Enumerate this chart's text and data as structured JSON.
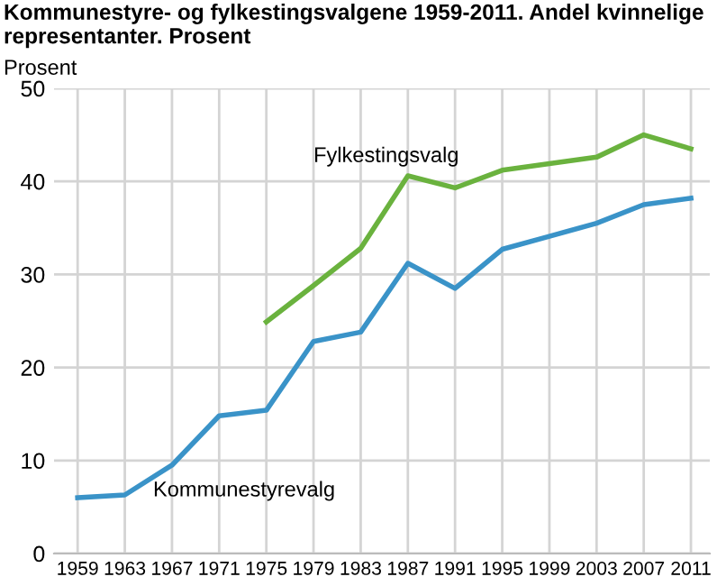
{
  "chart_data": {
    "type": "line",
    "title": "Kommunestyre- og fylkestingsvalgene 1959-2011. Andel kvinnelige representanter. Prosent",
    "ylabel": "Prosent",
    "categories": [
      "1959",
      "1963",
      "1967",
      "1971",
      "1975",
      "1979",
      "1983",
      "1987",
      "1991",
      "1995",
      "1999",
      "2003",
      "2007",
      "2011"
    ],
    "series": [
      {
        "name": "Kommunestyrevalg",
        "color": "#3a93c8",
        "values": [
          6.0,
          6.3,
          9.5,
          14.8,
          15.4,
          22.8,
          23.8,
          31.2,
          28.5,
          32.7,
          34.1,
          35.5,
          37.5,
          38.2
        ]
      },
      {
        "name": "Fylkestingsvalg",
        "color": "#6ab23e",
        "values": [
          null,
          null,
          null,
          null,
          24.9,
          28.8,
          32.8,
          40.6,
          39.3,
          41.2,
          41.9,
          42.6,
          45.0,
          43.5
        ]
      }
    ],
    "ylim": [
      0,
      50
    ],
    "yticks": [
      0,
      10,
      20,
      30,
      40,
      50
    ],
    "grid": true,
    "legend": false,
    "marker": "none",
    "line_style": "solid"
  }
}
